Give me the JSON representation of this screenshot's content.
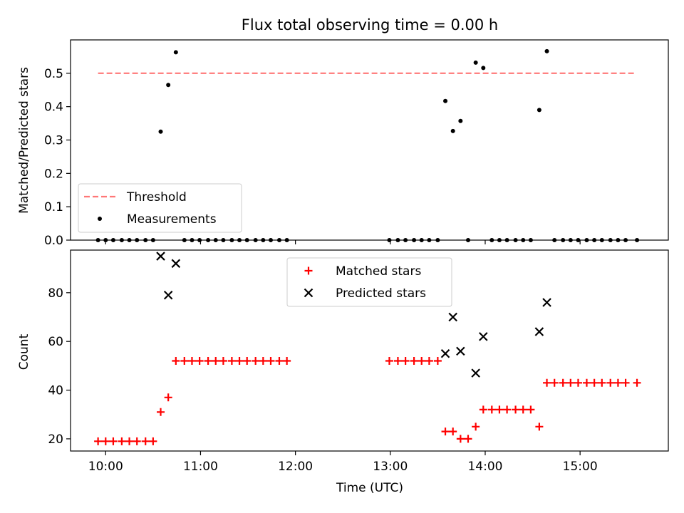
{
  "chart_data": {
    "title": "Flux total observing time = 0.00 h",
    "xlabel": "Time (UTC)",
    "x_unit": "hours UTC (decimal)",
    "xlim": [
      9.63,
      15.93
    ],
    "x_ticks": [
      {
        "value": 10,
        "label": "10:00"
      },
      {
        "value": 11,
        "label": "11:00"
      },
      {
        "value": 12,
        "label": "12:00"
      },
      {
        "value": 13,
        "label": "13:00"
      },
      {
        "value": 14,
        "label": "14:00"
      },
      {
        "value": 15,
        "label": "15:00"
      }
    ],
    "panels": [
      {
        "type": "scatter",
        "ylabel": "Matched/Predicted stars",
        "ylim": [
          0,
          0.6
        ],
        "y_ticks": [
          0.0,
          0.1,
          0.2,
          0.3,
          0.4,
          0.5
        ],
        "y_tick_labels": [
          "0.0",
          "0.1",
          "0.2",
          "0.3",
          "0.4",
          "0.5"
        ],
        "show_x_tick_labels": false,
        "legend_position": "lower-left",
        "threshold": {
          "name": "Threshold",
          "value": 0.5,
          "x_range": [
            9.92,
            15.58
          ],
          "color": "#ff7777",
          "style": "dashed"
        },
        "series": [
          {
            "name": "Measurements",
            "marker": "dot",
            "color": "#000000",
            "points": [
              [
                9.92,
                0.0
              ],
              [
                10.0,
                0.0
              ],
              [
                10.08,
                0.0
              ],
              [
                10.17,
                0.0
              ],
              [
                10.25,
                0.0
              ],
              [
                10.33,
                0.0
              ],
              [
                10.42,
                0.0
              ],
              [
                10.5,
                0.0
              ],
              [
                10.58,
                0.325
              ],
              [
                10.66,
                0.465
              ],
              [
                10.74,
                0.563
              ],
              [
                10.83,
                0.0
              ],
              [
                10.91,
                0.0
              ],
              [
                10.99,
                0.0
              ],
              [
                11.08,
                0.0
              ],
              [
                11.16,
                0.0
              ],
              [
                11.24,
                0.0
              ],
              [
                11.33,
                0.0
              ],
              [
                11.41,
                0.0
              ],
              [
                11.49,
                0.0
              ],
              [
                11.58,
                0.0
              ],
              [
                11.66,
                0.0
              ],
              [
                11.74,
                0.0
              ],
              [
                11.83,
                0.0
              ],
              [
                11.91,
                0.0
              ],
              [
                12.99,
                0.0
              ],
              [
                13.08,
                0.0
              ],
              [
                13.16,
                0.0
              ],
              [
                13.25,
                0.0
              ],
              [
                13.33,
                0.0
              ],
              [
                13.41,
                0.0
              ],
              [
                13.5,
                0.0
              ],
              [
                13.58,
                0.417
              ],
              [
                13.66,
                0.327
              ],
              [
                13.74,
                0.357
              ],
              [
                13.82,
                0.0
              ],
              [
                13.9,
                0.532
              ],
              [
                13.98,
                0.516
              ],
              [
                14.07,
                0.0
              ],
              [
                14.15,
                0.0
              ],
              [
                14.23,
                0.0
              ],
              [
                14.32,
                0.0
              ],
              [
                14.4,
                0.0
              ],
              [
                14.48,
                0.0
              ],
              [
                14.57,
                0.39
              ],
              [
                14.65,
                0.566
              ],
              [
                14.73,
                0.0
              ],
              [
                14.82,
                0.0
              ],
              [
                14.9,
                0.0
              ],
              [
                14.98,
                0.0
              ],
              [
                15.07,
                0.0
              ],
              [
                15.15,
                0.0
              ],
              [
                15.23,
                0.0
              ],
              [
                15.32,
                0.0
              ],
              [
                15.4,
                0.0
              ],
              [
                15.48,
                0.0
              ],
              [
                15.6,
                0.0
              ]
            ]
          }
        ]
      },
      {
        "type": "scatter",
        "ylabel": "Count",
        "ylim": [
          15,
          97.5
        ],
        "y_ticks": [
          20,
          40,
          60,
          80
        ],
        "y_tick_labels": [
          "20",
          "40",
          "60",
          "80"
        ],
        "show_x_tick_labels": true,
        "legend_position": "upper-center",
        "series": [
          {
            "name": "Matched stars",
            "marker": "plus",
            "color": "#ff0000",
            "points": [
              [
                9.92,
                19
              ],
              [
                10.0,
                19
              ],
              [
                10.08,
                19
              ],
              [
                10.17,
                19
              ],
              [
                10.25,
                19
              ],
              [
                10.33,
                19
              ],
              [
                10.42,
                19
              ],
              [
                10.5,
                19
              ],
              [
                10.58,
                31
              ],
              [
                10.66,
                37
              ],
              [
                10.74,
                52
              ],
              [
                10.83,
                52
              ],
              [
                10.91,
                52
              ],
              [
                10.99,
                52
              ],
              [
                11.08,
                52
              ],
              [
                11.16,
                52
              ],
              [
                11.24,
                52
              ],
              [
                11.33,
                52
              ],
              [
                11.41,
                52
              ],
              [
                11.49,
                52
              ],
              [
                11.58,
                52
              ],
              [
                11.66,
                52
              ],
              [
                11.74,
                52
              ],
              [
                11.83,
                52
              ],
              [
                11.91,
                52
              ],
              [
                12.99,
                52
              ],
              [
                13.08,
                52
              ],
              [
                13.16,
                52
              ],
              [
                13.25,
                52
              ],
              [
                13.33,
                52
              ],
              [
                13.41,
                52
              ],
              [
                13.5,
                52
              ],
              [
                13.58,
                23
              ],
              [
                13.66,
                23
              ],
              [
                13.74,
                20
              ],
              [
                13.82,
                20
              ],
              [
                13.9,
                25
              ],
              [
                13.98,
                32
              ],
              [
                14.07,
                32
              ],
              [
                14.15,
                32
              ],
              [
                14.23,
                32
              ],
              [
                14.32,
                32
              ],
              [
                14.4,
                32
              ],
              [
                14.48,
                32
              ],
              [
                14.57,
                25
              ],
              [
                14.65,
                43
              ],
              [
                14.73,
                43
              ],
              [
                14.82,
                43
              ],
              [
                14.9,
                43
              ],
              [
                14.98,
                43
              ],
              [
                15.07,
                43
              ],
              [
                15.15,
                43
              ],
              [
                15.23,
                43
              ],
              [
                15.32,
                43
              ],
              [
                15.4,
                43
              ],
              [
                15.48,
                43
              ],
              [
                15.6,
                43
              ]
            ]
          },
          {
            "name": "Predicted stars",
            "marker": "x",
            "color": "#000000",
            "points": [
              [
                10.58,
                95
              ],
              [
                10.66,
                79
              ],
              [
                10.74,
                92
              ],
              [
                13.58,
                55
              ],
              [
                13.66,
                70
              ],
              [
                13.74,
                56
              ],
              [
                13.9,
                47
              ],
              [
                13.98,
                62
              ],
              [
                14.57,
                64
              ],
              [
                14.65,
                76
              ]
            ]
          }
        ]
      }
    ]
  }
}
